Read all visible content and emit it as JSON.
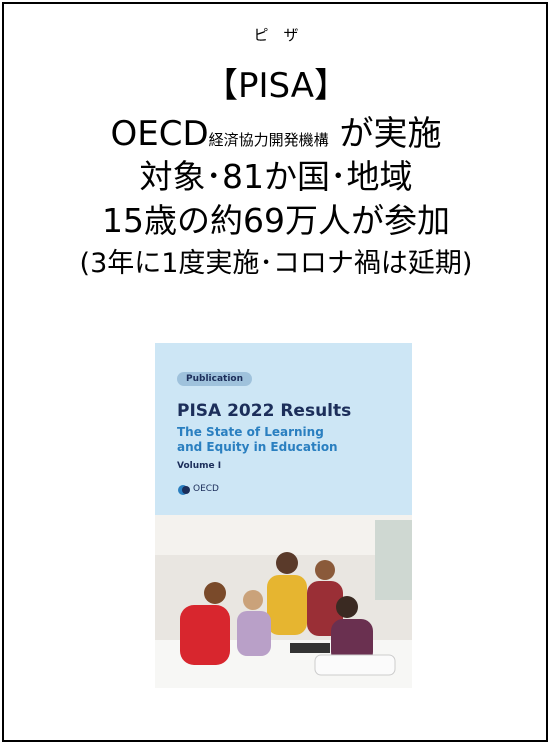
{
  "ruby": "ピ　ザ",
  "title": "【PISA】",
  "oecd_line": {
    "main": "OECD",
    "small": "経済協力開発機構",
    "suffix": "が実施"
  },
  "lines": [
    "対象･81か国･地域",
    "15歳の約69万人が参加",
    "(3年に1度実施･コロナ禍は延期)"
  ],
  "cover": {
    "badge": "Publication",
    "title": "PISA 2022 Results",
    "subtitle_lines": [
      "The State of Learning",
      "and Equity in Education"
    ],
    "volume": "Volume I",
    "logo": "OECD"
  }
}
